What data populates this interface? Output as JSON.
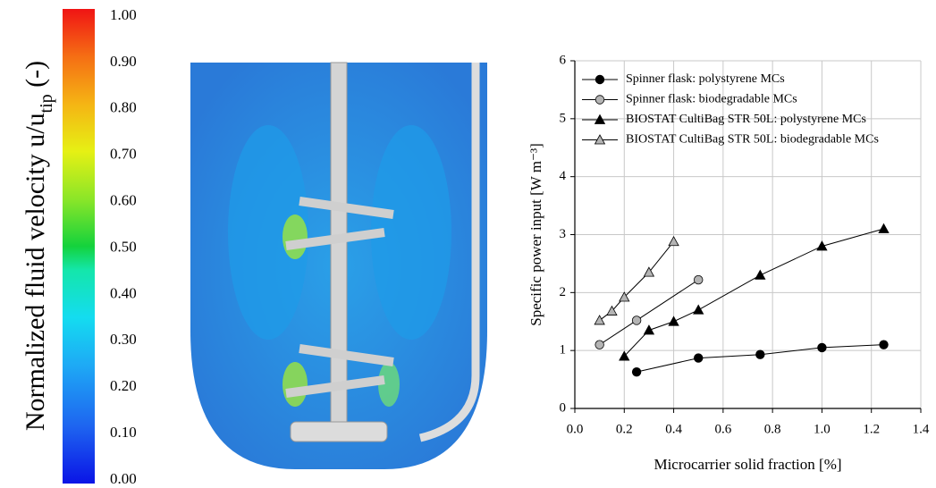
{
  "chart_data": [
    {
      "type": "colorbar",
      "label": [
        "Normalized fluid velocity u/u",
        "tip",
        " (-)"
      ],
      "ylim": [
        0,
        1
      ],
      "yticks": [
        {
          "value": 0,
          "label": "0.00"
        },
        {
          "value": 0.1,
          "label": "0.10"
        },
        {
          "value": 0.2,
          "label": "0.20"
        },
        {
          "value": 0.3,
          "label": "0.30"
        },
        {
          "value": 0.4,
          "label": "0.40"
        },
        {
          "value": 0.5,
          "label": "0.50"
        },
        {
          "value": 0.6,
          "label": "0.60"
        },
        {
          "value": 0.7,
          "label": "0.70"
        },
        {
          "value": 0.8,
          "label": "0.80"
        },
        {
          "value": 0.9,
          "label": "0.90"
        },
        {
          "value": 1,
          "label": "1.00"
        }
      ]
    },
    {
      "type": "line",
      "x_label": "Microcarrier solid fraction [%]",
      "y_label": "Specific power input [W m⁻³]",
      "xlim": [
        0,
        1.4
      ],
      "ylim": [
        0,
        6
      ],
      "xticks": [
        {
          "value": 0,
          "label": "0.0"
        },
        0.2,
        0.4,
        0.6,
        0.8,
        {
          "value": 1,
          "label": "1.0"
        },
        1.2,
        1.4
      ],
      "yticks": [
        0,
        1,
        2,
        3,
        4,
        5,
        6
      ],
      "grid": true,
      "legend": "upper left",
      "line_color": "#000000",
      "series": [
        {
          "name": "Spinner flask: polystyrene MCs",
          "color": "#000000",
          "marker": "circle",
          "x": [
            0.25,
            0.5,
            0.75,
            1.0,
            1.25
          ],
          "values": [
            0.63,
            0.87,
            0.93,
            1.05,
            1.1
          ]
        },
        {
          "name": "Spinner flask: biodegradable MCs",
          "color": "#b4b4b4",
          "marker": "circle",
          "x": [
            0.1,
            0.25,
            0.5
          ],
          "values": [
            1.1,
            1.52,
            2.22
          ]
        },
        {
          "name": "BIOSTAT CultiBag STR 50L: polystyrene MCs",
          "color": "#000000",
          "marker": "triangle",
          "x": [
            0.2,
            0.3,
            0.4,
            0.5,
            0.75,
            1.0,
            1.25
          ],
          "values": [
            0.9,
            1.35,
            1.5,
            1.7,
            2.3,
            2.8,
            3.1
          ]
        },
        {
          "name": "BIOSTAT CultiBag STR 50L: biodegradable MCs",
          "color": "#b4b4b4",
          "marker": "triangle",
          "x": [
            0.1,
            0.15,
            0.2,
            0.3,
            0.4
          ],
          "values": [
            1.52,
            1.68,
            1.92,
            2.35,
            2.88
          ]
        }
      ]
    }
  ]
}
